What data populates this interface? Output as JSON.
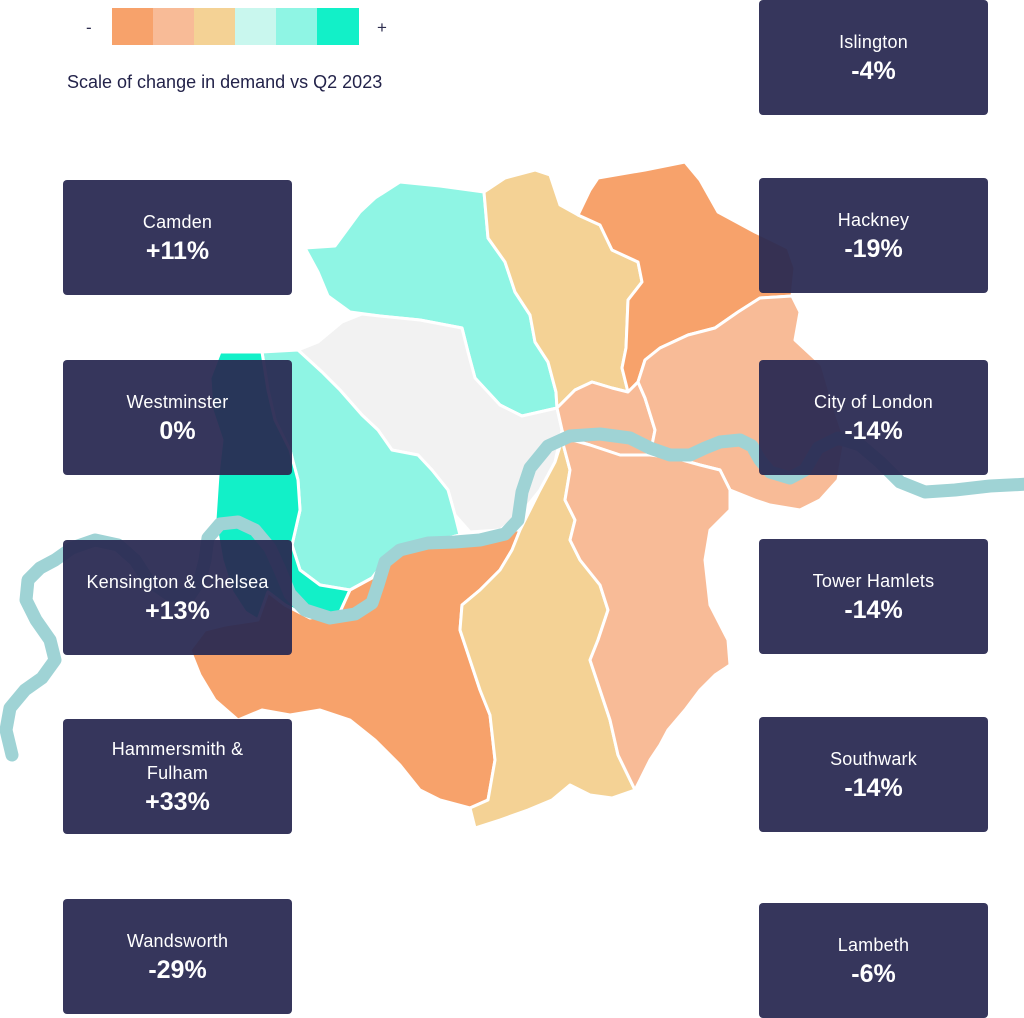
{
  "legend": {
    "minus_label": "-",
    "plus_label": "+",
    "caption": "Scale of change in demand vs Q2 2023",
    "colors": [
      "#f7a26b",
      "#f8bb97",
      "#f4d295",
      "#c9f7ee",
      "#8ff5e4",
      "#12f0c8"
    ]
  },
  "palette": {
    "card_bg": "#292952",
    "river": "#9fd3d5",
    "border": "#ffffff"
  },
  "boroughs": [
    {
      "key": "islington",
      "name": "Islington",
      "value": "-4%",
      "color": "#f4d295"
    },
    {
      "key": "camden",
      "name": "Camden",
      "value": "+11%",
      "color": "#8ff5e4"
    },
    {
      "key": "hackney",
      "name": "Hackney",
      "value": "-19%",
      "color": "#f7a26b"
    },
    {
      "key": "westminster",
      "name": "Westminster",
      "value": "0%",
      "color": "#f2f2f2"
    },
    {
      "key": "city-of-london",
      "name": "City of London",
      "value": "-14%",
      "color": "#f8bb97"
    },
    {
      "key": "kensington-chelsea",
      "name": "Kensington & Chelsea",
      "value": "+13%",
      "color": "#8ff5e4"
    },
    {
      "key": "tower-hamlets",
      "name": "Tower Hamlets",
      "value": "-14%",
      "color": "#f8bb97"
    },
    {
      "key": "hammersmith-fulham",
      "name": "Hammersmith & Fulham",
      "value": "+33%",
      "color": "#12f0c8"
    },
    {
      "key": "southwark",
      "name": "Southwark",
      "value": "-14%",
      "color": "#f8bb97"
    },
    {
      "key": "wandsworth",
      "name": "Wandsworth",
      "value": "-29%",
      "color": "#f7a26b"
    },
    {
      "key": "lambeth",
      "name": "Lambeth",
      "value": "-6%",
      "color": "#f4d295"
    }
  ]
}
